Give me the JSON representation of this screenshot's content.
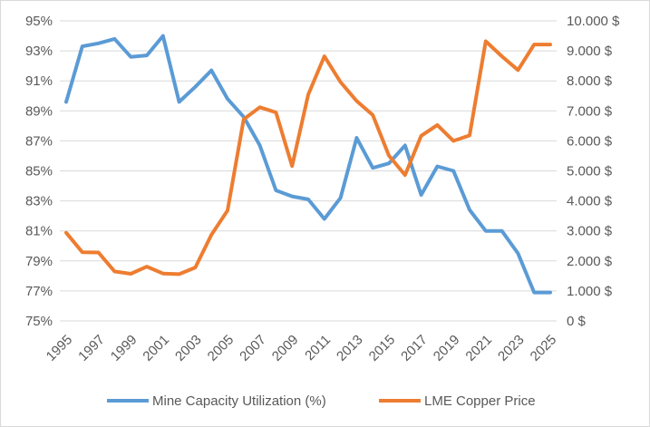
{
  "chart_data": {
    "type": "line",
    "title": "",
    "xlabel": "",
    "ylabel": "",
    "y2label": "",
    "grid": true,
    "legend_position": "bottom",
    "x": [
      1995,
      1996,
      1997,
      1998,
      1999,
      2000,
      2001,
      2002,
      2003,
      2004,
      2005,
      2006,
      2007,
      2008,
      2009,
      2010,
      2011,
      2012,
      2013,
      2014,
      2015,
      2016,
      2017,
      2018,
      2019,
      2020,
      2021,
      2022,
      2023,
      2024,
      2025
    ],
    "x_tick_labels": [
      "1995",
      "1997",
      "1999",
      "2001",
      "2003",
      "2005",
      "2007",
      "2009",
      "2011",
      "2013",
      "2015",
      "2017",
      "2019",
      "2021",
      "2023",
      "2025"
    ],
    "ylim": [
      75,
      95
    ],
    "y_tick_labels": [
      "75%",
      "77%",
      "79%",
      "81%",
      "83%",
      "85%",
      "87%",
      "89%",
      "91%",
      "93%",
      "95%"
    ],
    "y2lim": [
      0,
      10000
    ],
    "y2_tick_labels": [
      "0 $",
      "1.000 $",
      "2.000 $",
      "3.000 $",
      "4.000 $",
      "5.000 $",
      "6.000 $",
      "7.000 $",
      "8.000 $",
      "9.000 $",
      "10.000 $"
    ],
    "series": [
      {
        "name": "Mine Capacity Utilization (%)",
        "axis": "left",
        "color": "#5b9bd5",
        "values": [
          89.6,
          93.3,
          93.5,
          93.8,
          92.6,
          92.7,
          94.0,
          89.6,
          90.6,
          91.7,
          89.8,
          88.6,
          86.7,
          83.7,
          83.3,
          83.1,
          81.8,
          83.2,
          87.2,
          85.2,
          85.5,
          86.7,
          83.4,
          85.3,
          85.0,
          82.4,
          81.0,
          81.0,
          79.5,
          76.9,
          76.9
        ]
      },
      {
        "name": "LME Copper Price",
        "axis": "right",
        "color": "#ed7d31",
        "values": [
          2940,
          2290,
          2280,
          1650,
          1570,
          1810,
          1580,
          1560,
          1780,
          2870,
          3680,
          6720,
          7120,
          6950,
          5160,
          7540,
          8820,
          7960,
          7330,
          6860,
          5510,
          4860,
          6170,
          6530,
          6000,
          6180,
          9320,
          8820,
          8360,
          9210,
          9210
        ]
      }
    ]
  }
}
